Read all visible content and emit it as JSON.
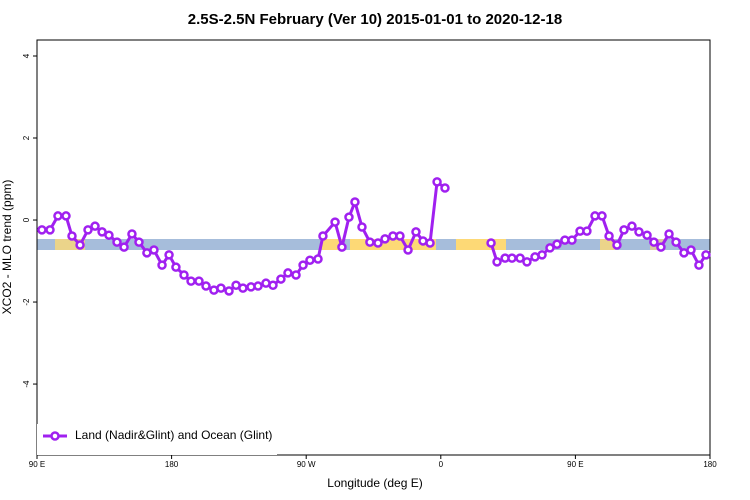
{
  "chart_data": {
    "type": "line",
    "title": "2.5S-2.5N February (Ver 10)   2015-01-01 to 2020-12-18",
    "x_label": "Longitude (deg E)",
    "y_label": "XCO2 - MLO trend (ppm)",
    "x": [
      93.3,
      98.7,
      104,
      109.4,
      113.4,
      118.8,
      124.1,
      128.8,
      133.5,
      138.1,
      143.5,
      148.2,
      153.5,
      158.2,
      163.5,
      168.2,
      173.6,
      178.3,
      182.9,
      188.3,
      193,
      198.3,
      203,
      208.3,
      213,
      218.4,
      223.1,
      227.7,
      233.1,
      237.8,
      243.1,
      247.8,
      253.1,
      257.8,
      263.2,
      267.9,
      272.5,
      277.9,
      281.2,
      289.3,
      293.9,
      298.6,
      302.6,
      307.3,
      312.6,
      318,
      322.7,
      328,
      332.7,
      338.1,
      343.4,
      348.1,
      352.8,
      357.5,
      362.8,
      378,
      393.6,
      397.6,
      403,
      407.6,
      413,
      417.6,
      423,
      427.7,
      433,
      437.7,
      443,
      447.7,
      453.1,
      457.7,
      463.1,
      467.8,
      472.5,
      477.8,
      482.5,
      487.8,
      492.5,
      497.9,
      502.5,
      507.2,
      512.6,
      517.3,
      522.6,
      527.3,
      532.6,
      537.3
    ],
    "series": [
      {
        "name": "Land (Nadir&Glint) and Ocean (Glint)",
        "color": "#a020f0",
        "values": [
          -0.24,
          -0.24,
          0.1,
          0.1,
          -0.39,
          -0.61,
          -0.24,
          -0.15,
          -0.29,
          -0.37,
          -0.54,
          -0.66,
          -0.34,
          -0.54,
          -0.8,
          -0.73,
          -1.1,
          -0.85,
          -1.15,
          -1.34,
          -1.49,
          -1.49,
          -1.61,
          -1.71,
          -1.66,
          -1.73,
          -1.59,
          -1.66,
          -1.63,
          -1.61,
          -1.54,
          -1.59,
          -1.44,
          -1.29,
          -1.34,
          -1.1,
          -0.98,
          -0.95,
          -0.39,
          -0.05,
          -0.66,
          0.07,
          0.44,
          -0.17,
          -0.54,
          -0.56,
          -0.46,
          -0.39,
          -0.39,
          -0.73,
          -0.29,
          -0.51,
          -0.56,
          0.93,
          0.78,
          null,
          -0.56,
          -1.02,
          -0.93,
          -0.93,
          -0.93,
          -1.02,
          -0.9,
          -0.85,
          -0.68,
          -0.59,
          -0.49,
          -0.49,
          -0.27,
          -0.27,
          0.1,
          0.1,
          -0.39,
          -0.61,
          -0.24,
          -0.15,
          -0.29,
          -0.37,
          -0.54,
          -0.66,
          -0.34,
          -0.54,
          -0.8,
          -0.73,
          -1.1,
          -0.85
        ]
      }
    ],
    "xlim": [
      90,
      540
    ],
    "xticks": [
      {
        "value": 90,
        "label": "90 E"
      },
      180,
      {
        "value": 270,
        "label": "90 W"
      },
      {
        "value": 360,
        "label": "0"
      },
      {
        "value": 450,
        "label": "90 E"
      },
      {
        "value": 540,
        "label": "180"
      }
    ],
    "ylim": [
      -5.73,
      4.39
    ],
    "yticks": [
      -4,
      -2,
      0,
      2,
      4
    ],
    "legend": "bottomleft"
  }
}
